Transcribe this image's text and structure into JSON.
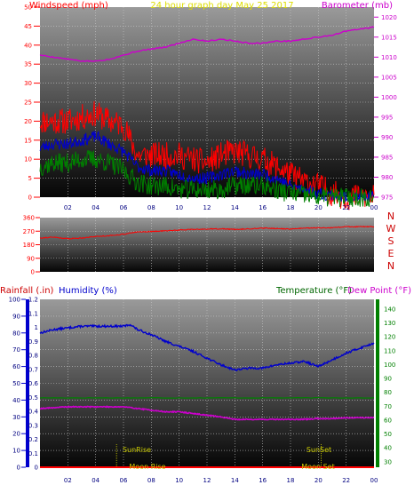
{
  "chart_data": [
    {
      "type": "line",
      "panel": "wind-barometer",
      "title": "24 hour graph day   May 25 2017",
      "left_axis_label": "Windspeed (mph)",
      "right_axis_label": "Barometer (mb)",
      "x_ticks": [
        "02",
        "04",
        "06",
        "08",
        "10",
        "12",
        "14",
        "16",
        "18",
        "20",
        "22",
        "00"
      ],
      "x_range_hours": [
        0,
        24
      ],
      "left_ticks": [
        "0",
        "5",
        "10",
        "15",
        "20",
        "25",
        "30",
        "35",
        "40",
        "45",
        "50"
      ],
      "left_range": [
        0,
        50
      ],
      "right_ticks": [
        "975",
        "980",
        "985",
        "990",
        "995",
        "1000",
        "1005",
        "1010",
        "1015",
        "1020"
      ],
      "right_range": [
        975,
        1022.5
      ],
      "grid": true,
      "colors": {
        "gust": "#ff0000",
        "average": "#0000cc",
        "wind_low": "#008000",
        "barometer": "#cc00cc"
      },
      "series": [
        {
          "axis": "right",
          "x": [
            0,
            1,
            2,
            3,
            4,
            5,
            6,
            7,
            8,
            9,
            10,
            11,
            12,
            13,
            14,
            15,
            16,
            17,
            18,
            19,
            20,
            21,
            22,
            23,
            24
          ],
          "values": [
            1010.5,
            1010,
            1009.5,
            1009,
            1009,
            1009.5,
            1010.5,
            1011.5,
            1012,
            1012.5,
            1013.5,
            1014.5,
            1014,
            1014.5,
            1014,
            1013.5,
            1013.5,
            1014,
            1014,
            1014.5,
            1015,
            1015.5,
            1016.5,
            1017,
            1017.5
          ]
        },
        {
          "axis": "left",
          "x": [
            0,
            1,
            2,
            3,
            4,
            5,
            6,
            7,
            8,
            9,
            10,
            11,
            12,
            13,
            14,
            15,
            16,
            17,
            18,
            19,
            20,
            21,
            22,
            23,
            24
          ],
          "values": [
            20,
            20,
            20,
            21,
            22,
            20,
            19,
            11,
            11,
            11,
            11,
            10,
            9,
            11,
            12,
            11,
            10,
            8,
            6,
            4,
            3,
            1,
            0,
            0,
            0
          ]
        },
        {
          "axis": "left",
          "x": [
            0,
            1,
            2,
            3,
            4,
            5,
            6,
            7,
            8,
            9,
            10,
            11,
            12,
            13,
            14,
            15,
            16,
            17,
            18,
            19,
            20,
            21,
            22,
            23,
            24
          ],
          "values": [
            13,
            14,
            14,
            15,
            16,
            14,
            12,
            8,
            7,
            7,
            6,
            5,
            5,
            6,
            7,
            6,
            6,
            5,
            3,
            2,
            1,
            0.5,
            0,
            0,
            0
          ]
        },
        {
          "axis": "left",
          "x": [
            0,
            1,
            2,
            3,
            4,
            5,
            6,
            7,
            8,
            9,
            10,
            11,
            12,
            13,
            14,
            15,
            16,
            17,
            18,
            19,
            20,
            21,
            22,
            23,
            24
          ],
          "values": [
            8,
            9,
            9,
            10,
            10,
            9,
            7,
            4,
            3,
            3,
            2,
            2,
            2,
            2,
            3,
            3,
            3,
            2,
            1,
            0.5,
            0,
            0,
            0,
            0,
            0
          ]
        }
      ]
    },
    {
      "type": "line",
      "panel": "wind-direction",
      "y_ticks": [
        "0",
        "90",
        "180",
        "270",
        "360"
      ],
      "y_range": [
        0,
        360
      ],
      "direction_labels": [
        "N",
        "W",
        "S",
        "E",
        "N"
      ],
      "colors": {
        "direction": "#ff0000"
      },
      "series": [
        {
          "x": [
            0,
            1,
            2,
            3,
            4,
            5,
            6,
            7,
            8,
            9,
            10,
            11,
            12,
            13,
            14,
            15,
            16,
            17,
            18,
            19,
            20,
            21,
            22,
            23,
            24
          ],
          "values": [
            225,
            230,
            220,
            225,
            235,
            240,
            250,
            265,
            268,
            272,
            278,
            282,
            284,
            286,
            282,
            285,
            290,
            288,
            284,
            290,
            292,
            292,
            300,
            300,
            300
          ]
        }
      ]
    },
    {
      "type": "line",
      "panel": "rain-humidity-temperature",
      "rainfall_axis_label": "Rainfall (.in)",
      "humidity_axis_label": "Humidity (%)",
      "temperature_axis_label": "Temperature (°F)",
      "dewpoint_axis_label": "Dew Point (°F)",
      "rain_ticks": [
        "0",
        "0.1",
        "0.2",
        "0.3",
        "0.4",
        "0.5",
        "0.6",
        "0.7",
        "0.8",
        "0.9",
        "1",
        "1.1",
        "1.2"
      ],
      "rain_range": [
        0,
        1.2
      ],
      "humidity_ticks": [
        "0",
        "10",
        "20",
        "30",
        "40",
        "50",
        "60",
        "70",
        "80",
        "90",
        "100"
      ],
      "humidity_range": [
        0,
        100
      ],
      "temperature_ticks": [
        "30",
        "40",
        "50",
        "60",
        "70",
        "80",
        "90",
        "100",
        "110",
        "120",
        "130",
        "140"
      ],
      "temperature_range": [
        26,
        147
      ],
      "annotations": {
        "sunrise": "SunRise",
        "sunset": "SunSet",
        "moonrise": "Moon Rise",
        "moonset": "Moon Set"
      },
      "colors": {
        "humidity": "#0000cc",
        "temperature": "#008000",
        "dewpoint": "#cc00cc",
        "rainfall": "#ff0000",
        "events": "#cccc00"
      },
      "series": [
        {
          "axis": "humidity",
          "x": [
            0,
            1,
            2,
            3,
            4,
            5,
            6,
            6.5,
            7,
            8,
            9,
            10,
            11,
            12,
            13,
            14,
            15,
            16,
            17,
            18,
            19,
            20,
            21,
            22,
            23,
            24
          ],
          "values": [
            80,
            82,
            83,
            84,
            84,
            84,
            84,
            85,
            82,
            79,
            75,
            72,
            69,
            65,
            61,
            58,
            59,
            59,
            61,
            62,
            63,
            60,
            64,
            68,
            71,
            74
          ]
        },
        {
          "axis": "temperature",
          "x": [
            0,
            24
          ],
          "values": [
            76,
            76
          ]
        },
        {
          "axis": "humidity",
          "x": [
            0,
            1,
            2,
            3,
            4,
            5,
            6,
            7,
            8,
            9,
            10,
            11,
            12,
            13,
            14,
            15,
            16,
            17,
            18,
            19,
            20,
            21,
            22,
            23,
            24
          ],
          "values": [
            35,
            35.5,
            36,
            36,
            36,
            36,
            36,
            35,
            34,
            33,
            33,
            32,
            31,
            30,
            28.5,
            28.5,
            28.5,
            28.5,
            28.5,
            28.5,
            29,
            29,
            29.5,
            29.5,
            29.5
          ]
        },
        {
          "axis": "rain",
          "x": [
            0,
            24
          ],
          "values": [
            0,
            0
          ]
        }
      ]
    }
  ]
}
